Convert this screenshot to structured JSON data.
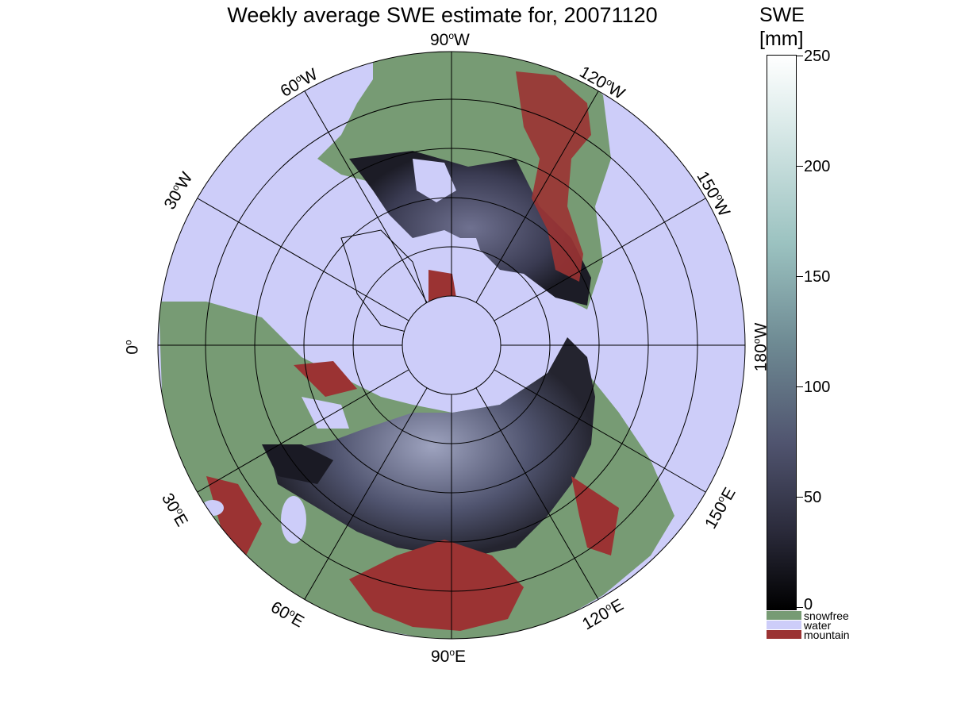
{
  "map": {
    "title": "Weekly average SWE estimate for, 20071120",
    "projection": "north polar stereographic",
    "longitude_labels": {
      "top": "90",
      "top_dir": "W",
      "upper_left": "60",
      "upper_left_dir": "W",
      "left_upper": "30",
      "left_upper_dir": "W",
      "left": "0",
      "right": "180",
      "right_dir": "W",
      "upper_right": "120",
      "upper_right_dir": "W",
      "right_upper": "150",
      "right_upper_dir": "W",
      "lower_left": "30",
      "lower_left_dir": "E",
      "bottom_left": "60",
      "bottom_left_dir": "E",
      "bottom": "90",
      "bottom_dir": "E",
      "bottom_right": "120",
      "bottom_right_dir": "E",
      "lower_right": "150",
      "lower_right_dir": "E"
    },
    "degree_symbol": "o"
  },
  "colorbar": {
    "title_line1": "SWE",
    "title_line2": "[mm]",
    "ticks": [
      "250",
      "200",
      "150",
      "100",
      "50",
      "0"
    ],
    "range": [
      0,
      250
    ]
  },
  "legend": {
    "items": [
      {
        "label": "snowfree",
        "color": "#779b74"
      },
      {
        "label": "water",
        "color": "#cdcdf9"
      },
      {
        "label": "mountain",
        "color": "#9b3333"
      }
    ]
  },
  "colors": {
    "snowfree": "#779b74",
    "water": "#cdcdf9",
    "mountain": "#9b3333",
    "snow_low": "#1a1a24",
    "snow_mid": "#50546f",
    "snow_high": "#9bc2c0"
  }
}
